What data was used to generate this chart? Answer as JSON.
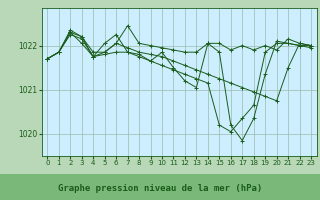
{
  "background_color": "#b8d8b8",
  "plot_bg_color": "#cceeff",
  "grid_color": "#99bbaa",
  "line_color": "#1a5c1a",
  "marker_color": "#1a5c1a",
  "xlabel": "Graphe pression niveau de la mer (hPa)",
  "xlabel_fontsize": 6.5,
  "xlabel_bg": "#7ab87a",
  "xtick_fontsize": 5,
  "ytick_fontsize": 5.5,
  "xticks": [
    0,
    1,
    2,
    3,
    4,
    5,
    6,
    7,
    8,
    9,
    10,
    11,
    12,
    13,
    14,
    15,
    16,
    17,
    18,
    19,
    20,
    21,
    22,
    23
  ],
  "yticks": [
    1020,
    1021,
    1022
  ],
  "ylim": [
    1019.5,
    1022.85
  ],
  "xlim": [
    -0.5,
    23.5
  ],
  "series": [
    [
      1021.7,
      1021.85,
      1022.35,
      1022.2,
      1021.75,
      1021.85,
      1022.05,
      1022.45,
      1022.05,
      1022.0,
      1021.95,
      1021.9,
      1021.85,
      1021.85,
      1022.05,
      1022.05,
      1021.9,
      1022.0,
      1021.9,
      1022.0,
      1021.9,
      1022.15,
      1022.05,
      1022.0
    ],
    [
      1021.7,
      1021.85,
      1022.3,
      1022.2,
      1021.85,
      1021.85,
      1022.05,
      1021.95,
      1021.85,
      1021.8,
      1021.75,
      1021.65,
      1021.55,
      1021.45,
      1021.35,
      1021.25,
      1021.15,
      1021.05,
      1020.95,
      1020.85,
      1020.75,
      1021.5,
      1022.05,
      1022.0
    ],
    [
      1021.7,
      1021.85,
      1022.25,
      1022.15,
      1021.75,
      1022.05,
      1022.25,
      1021.85,
      1021.8,
      1021.65,
      1021.85,
      1021.5,
      1021.2,
      1021.05,
      1022.05,
      1021.85,
      1020.2,
      1019.85,
      1020.35,
      1021.35,
      1022.1,
      1022.05,
      1022.0,
      1022.0
    ],
    [
      1021.7,
      1021.85,
      1022.3,
      1022.05,
      1021.75,
      1021.8,
      1021.85,
      1021.85,
      1021.75,
      1021.65,
      1021.55,
      1021.45,
      1021.35,
      1021.25,
      1021.15,
      1020.2,
      1020.05,
      1020.35,
      1020.65,
      1021.85,
      1022.05,
      1022.05,
      1022.0,
      1021.95
    ]
  ]
}
